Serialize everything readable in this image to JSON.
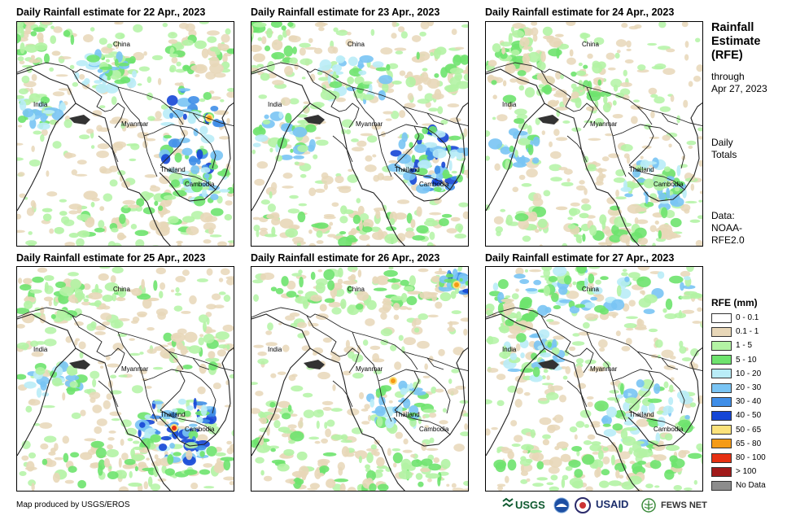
{
  "panels": [
    {
      "title": "Daily Rainfall estimate for 22 Apr., 2023",
      "labels": [
        "China",
        "India",
        "Myanmar",
        "Thailand",
        "Cambodia"
      ]
    },
    {
      "title": "Daily Rainfall estimate for 23 Apr., 2023",
      "labels": [
        "China",
        "India",
        "Myanmar",
        "Thailand",
        "Cambodia"
      ]
    },
    {
      "title": "Daily Rainfall estimate for 24 Apr., 2023",
      "labels": [
        "China",
        "India",
        "Myanmar",
        "Thailand",
        "Cambodia"
      ]
    },
    {
      "title": "Daily Rainfall estimate for 25 Apr., 2023",
      "labels": [
        "China",
        "India",
        "Myanmar",
        "Thailand",
        "Cambodia"
      ]
    },
    {
      "title": "Daily Rainfall estimate for 26 Apr., 2023",
      "labels": [
        "China",
        "India",
        "Myanmar",
        "Thailand",
        "Cambodia"
      ]
    },
    {
      "title": "Daily Rainfall estimate for 27 Apr., 2023",
      "labels": [
        "China",
        "India",
        "Myanmar",
        "Thailand",
        "Cambodia"
      ]
    }
  ],
  "sidebar": {
    "title_lines": [
      "Rainfall",
      "Estimate",
      "(RFE)"
    ],
    "through_lines": [
      "through",
      "Apr 27, 2023"
    ],
    "daily_lines": [
      "Daily",
      "Totals"
    ],
    "data_lines": [
      "Data:",
      "NOAA-",
      "RFE2.0"
    ]
  },
  "legend": {
    "title": "RFE (mm)",
    "items": [
      {
        "label": "0 - 0.1",
        "color": "#ffffff"
      },
      {
        "label": "0.1 - 1",
        "color": "#e8d7b8"
      },
      {
        "label": "1 - 5",
        "color": "#b3f3a4"
      },
      {
        "label": "5 - 10",
        "color": "#6ee36e"
      },
      {
        "label": "10 - 20",
        "color": "#b9ecf7"
      },
      {
        "label": "20 - 30",
        "color": "#79c4f4"
      },
      {
        "label": "30 - 40",
        "color": "#3f8ee8"
      },
      {
        "label": "40 - 50",
        "color": "#1546d6"
      },
      {
        "label": "50 - 65",
        "color": "#fbe27b"
      },
      {
        "label": "65 - 80",
        "color": "#f59b16"
      },
      {
        "label": "80 - 100",
        "color": "#e63012"
      },
      {
        "label": "> 100",
        "color": "#a11a1a"
      },
      {
        "label": "No Data",
        "color": "#8c8c8c"
      }
    ]
  },
  "footer": {
    "credit": "Map produced by USGS/EROS",
    "logos": [
      "USGS",
      "NOAA",
      "USAID",
      "FEWS NET"
    ]
  }
}
